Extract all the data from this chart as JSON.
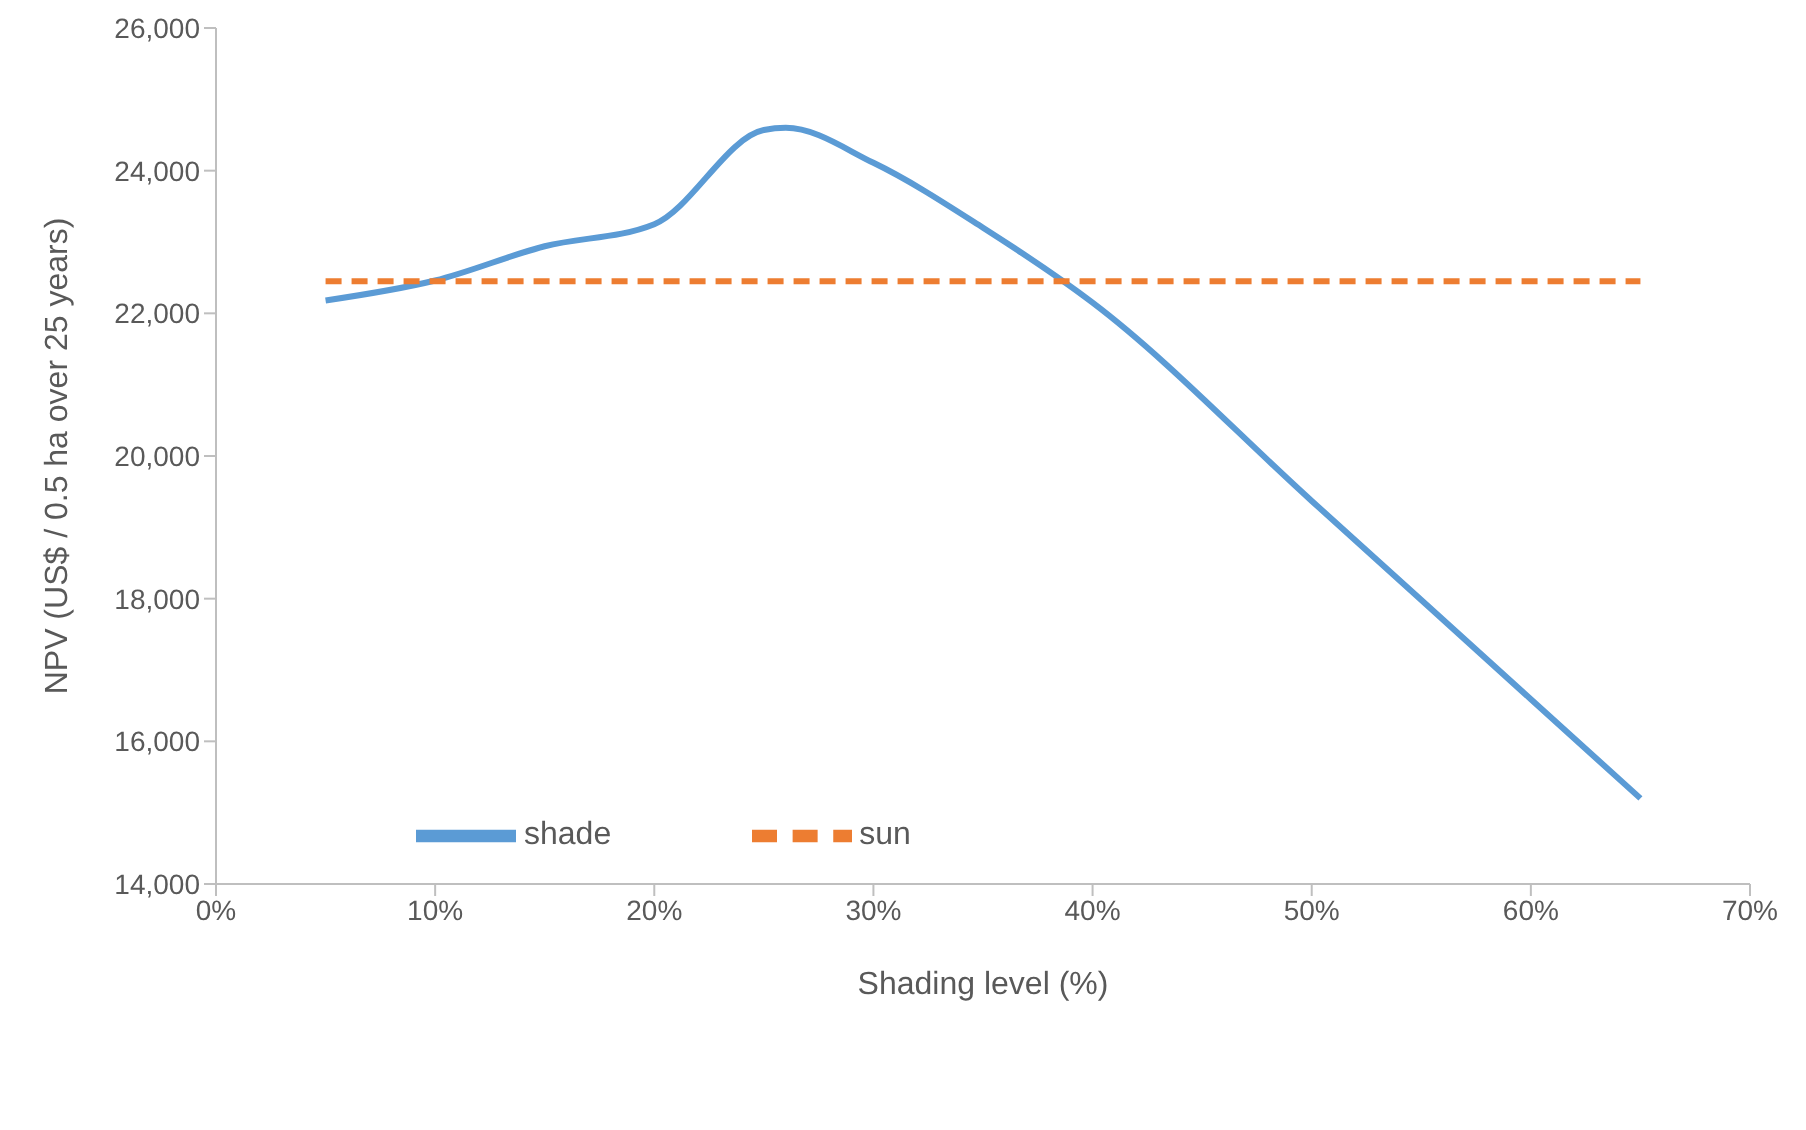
{
  "chart_data": {
    "type": "line",
    "xlabel": "Shading level (%)",
    "ylabel": "NPV (US$ / 0.5 ha over 25 years)",
    "xlim": [
      0,
      70
    ],
    "xticks": [
      {
        "value": 0,
        "label": "0%"
      },
      {
        "value": 10,
        "label": "10%"
      },
      {
        "value": 20,
        "label": "20%"
      },
      {
        "value": 30,
        "label": "30%"
      },
      {
        "value": 40,
        "label": "40%"
      },
      {
        "value": 50,
        "label": "50%"
      },
      {
        "value": 60,
        "label": "60%"
      },
      {
        "value": 70,
        "label": "70%"
      }
    ],
    "ylim": [
      14000,
      26000
    ],
    "yticks": [
      {
        "value": 14000,
        "label": "14,000"
      },
      {
        "value": 16000,
        "label": "16,000"
      },
      {
        "value": 18000,
        "label": "18,000"
      },
      {
        "value": 20000,
        "label": "20,000"
      },
      {
        "value": 22000,
        "label": "22,000"
      },
      {
        "value": 24000,
        "label": "24,000"
      },
      {
        "value": 26000,
        "label": "26,000"
      }
    ],
    "legend": "bottom left",
    "marker": "none",
    "series": [
      {
        "name": "shade",
        "color": "#5b9bd5",
        "line_style": "solid",
        "x": [
          5,
          10,
          15,
          20,
          25,
          26,
          30,
          35,
          40,
          50,
          60,
          65
        ],
        "values": [
          22180,
          22460,
          22940,
          23250,
          24570,
          24600,
          24110,
          23200,
          22150,
          19370,
          16590,
          15200
        ]
      },
      {
        "name": "sun",
        "color": "#ed7d31",
        "line_style": "dashed",
        "x": [
          5,
          65
        ],
        "values": [
          22450,
          22450
        ]
      }
    ]
  }
}
